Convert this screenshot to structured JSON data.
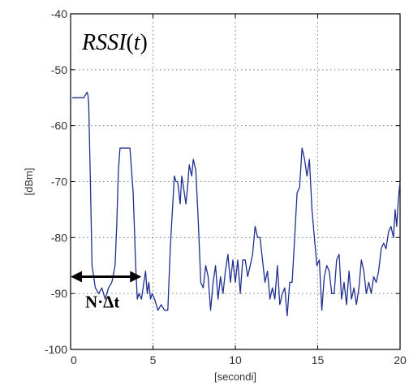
{
  "chart_data": {
    "type": "line",
    "title": "RSSI(t)",
    "title_parts": {
      "fn": "RSSI",
      "open": "(",
      "var": "t",
      "close": ")"
    },
    "xlabel": "[secondi]",
    "ylabel": "[dBm]",
    "xlim": [
      0,
      20
    ],
    "ylim": [
      -100,
      -40
    ],
    "xticks": [
      0,
      5,
      10,
      15,
      20
    ],
    "xtick_labels": [
      "0",
      "5",
      "10",
      "15",
      "20"
    ],
    "yticks": [
      -100,
      -90,
      -80,
      -70,
      -60,
      -50,
      -40
    ],
    "ytick_labels": [
      "-100",
      "-90",
      "-80",
      "-70",
      "-60",
      "-50",
      "-40"
    ],
    "grid": true,
    "annotation": {
      "text": "N·Δt",
      "x_from": 0,
      "x_to": 4.3,
      "y": -87
    },
    "series": [
      {
        "color": "#1f2f8f",
        "x": [
          0.1,
          0.8,
          1.0,
          1.05,
          1.1,
          1.2,
          1.3,
          1.5,
          1.7,
          1.9,
          2.1,
          2.3,
          2.5,
          2.7,
          2.8,
          2.9,
          3.0,
          3.05,
          3.1,
          3.2,
          3.4,
          3.6,
          3.8,
          3.95,
          4.05,
          4.15,
          4.3,
          4.45,
          4.55,
          4.65,
          4.75,
          4.85,
          4.95,
          5.1,
          5.3,
          5.5,
          5.7,
          5.9,
          6.05,
          6.2,
          6.3,
          6.4,
          6.5,
          6.65,
          6.75,
          6.85,
          7.0,
          7.1,
          7.2,
          7.35,
          7.45,
          7.6,
          7.75,
          7.9,
          8.05,
          8.2,
          8.35,
          8.5,
          8.65,
          8.8,
          8.95,
          9.1,
          9.25,
          9.4,
          9.55,
          9.7,
          9.85,
          10.0,
          10.15,
          10.3,
          10.45,
          10.6,
          10.75,
          10.9,
          11.05,
          11.2,
          11.35,
          11.5,
          11.65,
          11.8,
          11.95,
          12.1,
          12.25,
          12.4,
          12.55,
          12.7,
          12.85,
          13.0,
          13.15,
          13.3,
          13.45,
          13.6,
          13.75,
          13.9,
          14.05,
          14.2,
          14.35,
          14.5,
          14.65,
          14.8,
          14.95,
          15.1,
          15.25,
          15.4,
          15.55,
          15.7,
          15.85,
          16.0,
          16.15,
          16.3,
          16.45,
          16.6,
          16.75,
          16.9,
          17.05,
          17.2,
          17.35,
          17.5,
          17.65,
          17.8,
          17.95,
          18.1,
          18.25,
          18.4,
          18.55,
          18.7,
          18.85,
          19.0,
          19.15,
          19.3,
          19.45,
          19.6,
          19.7,
          19.8,
          19.9,
          20.0
        ],
        "values": [
          -55,
          -55,
          -54,
          -54.5,
          -56,
          -70,
          -85,
          -89,
          -90,
          -89,
          -91,
          -89,
          -88,
          -85,
          -78,
          -68,
          -64,
          -64,
          -64,
          -64,
          -64,
          -64,
          -72,
          -85,
          -91,
          -90,
          -91,
          -88,
          -86,
          -90,
          -88,
          -91,
          -90,
          -91,
          -93,
          -92,
          -93,
          -93,
          -82,
          -74,
          -69,
          -70,
          -70,
          -74,
          -69,
          -71,
          -74,
          -71,
          -67,
          -69,
          -66,
          -68,
          -77,
          -88,
          -89,
          -85,
          -87,
          -93,
          -88,
          -85,
          -91,
          -87,
          -90,
          -86,
          -83,
          -88,
          -84,
          -88,
          -84,
          -90,
          -84,
          -84,
          -87,
          -85,
          -83,
          -78,
          -80,
          -80,
          -84,
          -88,
          -86,
          -91,
          -89,
          -91,
          -85,
          -92,
          -90,
          -89,
          -94,
          -88,
          -88,
          -80,
          -72,
          -71,
          -64,
          -66,
          -69,
          -66,
          -75,
          -80,
          -85,
          -84,
          -93,
          -87,
          -85,
          -86,
          -90,
          -90,
          -84,
          -83,
          -91,
          -88,
          -92,
          -86,
          -91,
          -89,
          -92,
          -89,
          -84,
          -86,
          -90,
          -88,
          -90,
          -87,
          -88,
          -86,
          -82,
          -81,
          -82,
          -79,
          -78,
          -80,
          -75,
          -78,
          -73,
          -70
        ]
      }
    ]
  }
}
